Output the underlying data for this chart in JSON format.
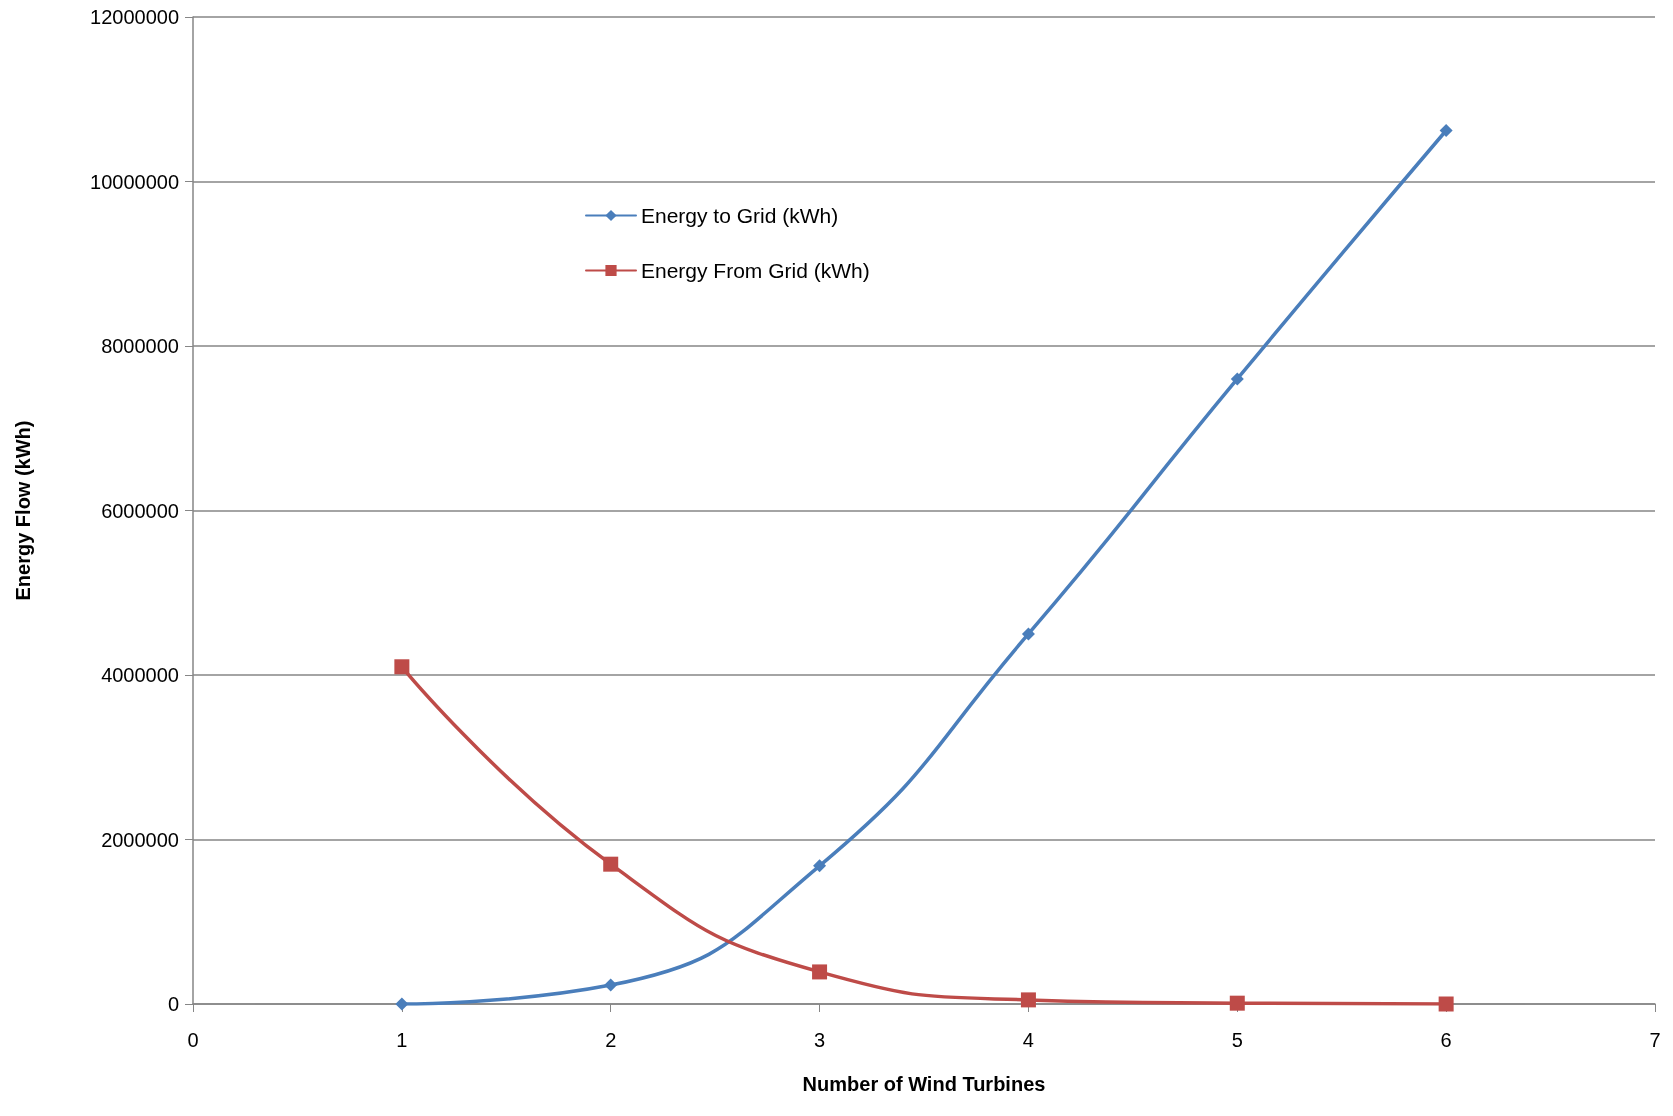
{
  "chart_data": {
    "type": "line",
    "xlabel": "Number of Wind Turbines",
    "ylabel": "Energy Flow (kWh)",
    "x": [
      1,
      2,
      3,
      4,
      5,
      6
    ],
    "series": [
      {
        "name": "Energy to Grid (kWh)",
        "color": "#4a7ebb",
        "marker": "diamond",
        "values": [
          0,
          230000,
          1680000,
          4500000,
          7600000,
          10620000
        ]
      },
      {
        "name": "Energy From Grid (kWh)",
        "color": "#be4b48",
        "marker": "square",
        "values": [
          4100000,
          1700000,
          390000,
          50000,
          10000,
          0
        ]
      }
    ],
    "xlim": [
      0,
      7
    ],
    "xticks": [
      0,
      1,
      2,
      3,
      4,
      5,
      6,
      7
    ],
    "ylim": [
      0,
      12000000
    ],
    "yticks": [
      0,
      2000000,
      4000000,
      6000000,
      8000000,
      10000000,
      12000000
    ],
    "grid": "y",
    "legend": "top left",
    "line_style": "solid"
  }
}
